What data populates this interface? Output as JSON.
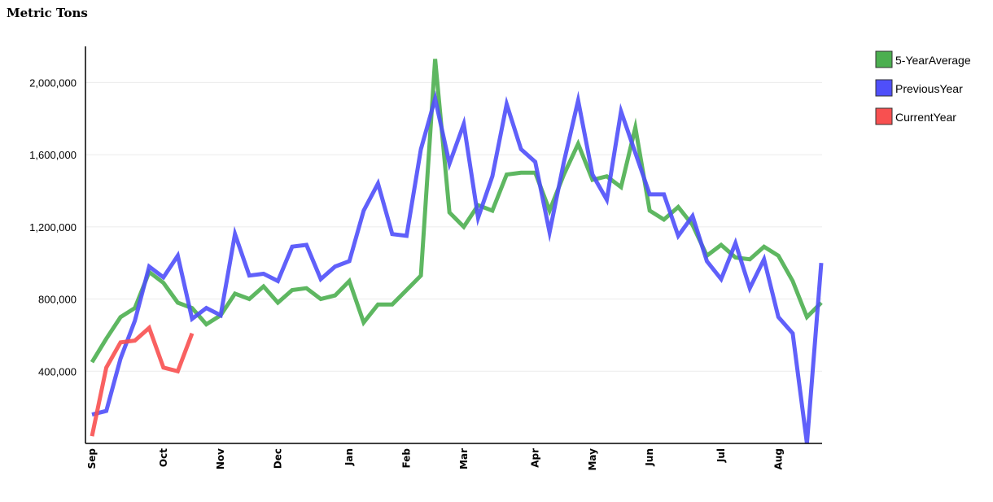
{
  "chart_data": {
    "type": "line",
    "ylabel": "Metric Tons",
    "ylim": [
      0,
      2200000
    ],
    "yticks": [
      400000,
      800000,
      1200000,
      1600000,
      2000000
    ],
    "ytick_labels": [
      "400,000",
      "800,000",
      "1,200,000",
      "1,600,000",
      "2,000,000"
    ],
    "grid": true,
    "legend_position": "top-right",
    "x_count": 52,
    "month_ticks": [
      {
        "label": "Sep",
        "index": 0
      },
      {
        "label": "Oct",
        "index": 5
      },
      {
        "label": "Nov",
        "index": 9
      },
      {
        "label": "Dec",
        "index": 13
      },
      {
        "label": "Jan",
        "index": 18
      },
      {
        "label": "Feb",
        "index": 22
      },
      {
        "label": "Mar",
        "index": 26
      },
      {
        "label": "Apr",
        "index": 31
      },
      {
        "label": "May",
        "index": 35
      },
      {
        "label": "Jun",
        "index": 39
      },
      {
        "label": "Jul",
        "index": 44
      },
      {
        "label": "Aug",
        "index": 48
      }
    ],
    "series": [
      {
        "name": "5-YearAverage",
        "color": "#4caf50",
        "values": [
          450000,
          580000,
          700000,
          750000,
          950000,
          890000,
          780000,
          750000,
          660000,
          710000,
          830000,
          800000,
          870000,
          780000,
          850000,
          860000,
          800000,
          820000,
          900000,
          670000,
          770000,
          770000,
          850000,
          930000,
          2130000,
          1280000,
          1200000,
          1320000,
          1290000,
          1490000,
          1500000,
          1500000,
          1290000,
          1490000,
          1660000,
          1460000,
          1480000,
          1420000,
          1750000,
          1290000,
          1240000,
          1310000,
          1210000,
          1040000,
          1100000,
          1030000,
          1020000,
          1090000,
          1040000,
          900000,
          700000,
          780000
        ]
      },
      {
        "name": "PreviousYear",
        "color": "#4f4ffa",
        "values": [
          160000,
          180000,
          470000,
          680000,
          980000,
          920000,
          1040000,
          690000,
          750000,
          710000,
          1160000,
          930000,
          940000,
          900000,
          1090000,
          1100000,
          910000,
          980000,
          1010000,
          1290000,
          1440000,
          1160000,
          1150000,
          1630000,
          1910000,
          1550000,
          1770000,
          1250000,
          1480000,
          1880000,
          1630000,
          1560000,
          1170000,
          1560000,
          1900000,
          1490000,
          1350000,
          1840000,
          1610000,
          1380000,
          1380000,
          1150000,
          1260000,
          1010000,
          910000,
          1110000,
          860000,
          1020000,
          700000,
          610000,
          0,
          1000000
        ]
      },
      {
        "name": "CurrentYear",
        "color": "#f85050",
        "values": [
          40000,
          420000,
          560000,
          570000,
          640000,
          420000,
          400000,
          610000
        ]
      }
    ]
  }
}
